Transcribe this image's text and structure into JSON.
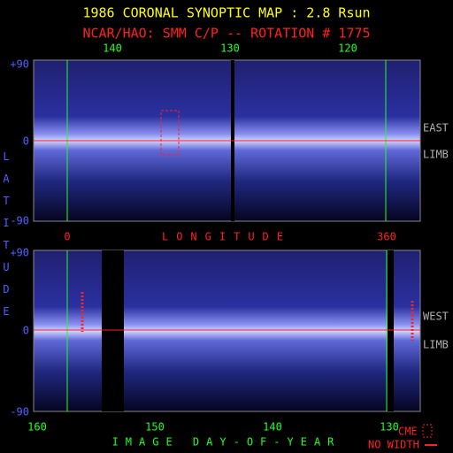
{
  "header": {
    "title": "1986 CORONAL SYNOPTIC MAP : 2.8 Rsun",
    "subtitle": "NCAR/HAO: SMM C/P -- ROTATION # 1775"
  },
  "top_panel": {
    "top_axis_labels": [
      "140",
      "130",
      "120"
    ],
    "lat_labels": [
      "+90",
      "0",
      "-90"
    ],
    "side_labels": [
      "EAST",
      "LIMB"
    ]
  },
  "longitude_axis": {
    "labels": [
      "0",
      "360"
    ],
    "title": "LONGITUDE"
  },
  "latitude_title": "LATITUDE",
  "bottom_panel": {
    "lat_labels": [
      "+90",
      "0",
      "-90"
    ],
    "side_labels": [
      "WEST",
      "LIMB"
    ],
    "bottom_axis_labels": [
      "160",
      "150",
      "140",
      "130"
    ],
    "axis_title": "IMAGE DAY-OF-YEAR"
  },
  "legend": {
    "cme": "CME",
    "no_width": "NO WIDTH"
  }
}
